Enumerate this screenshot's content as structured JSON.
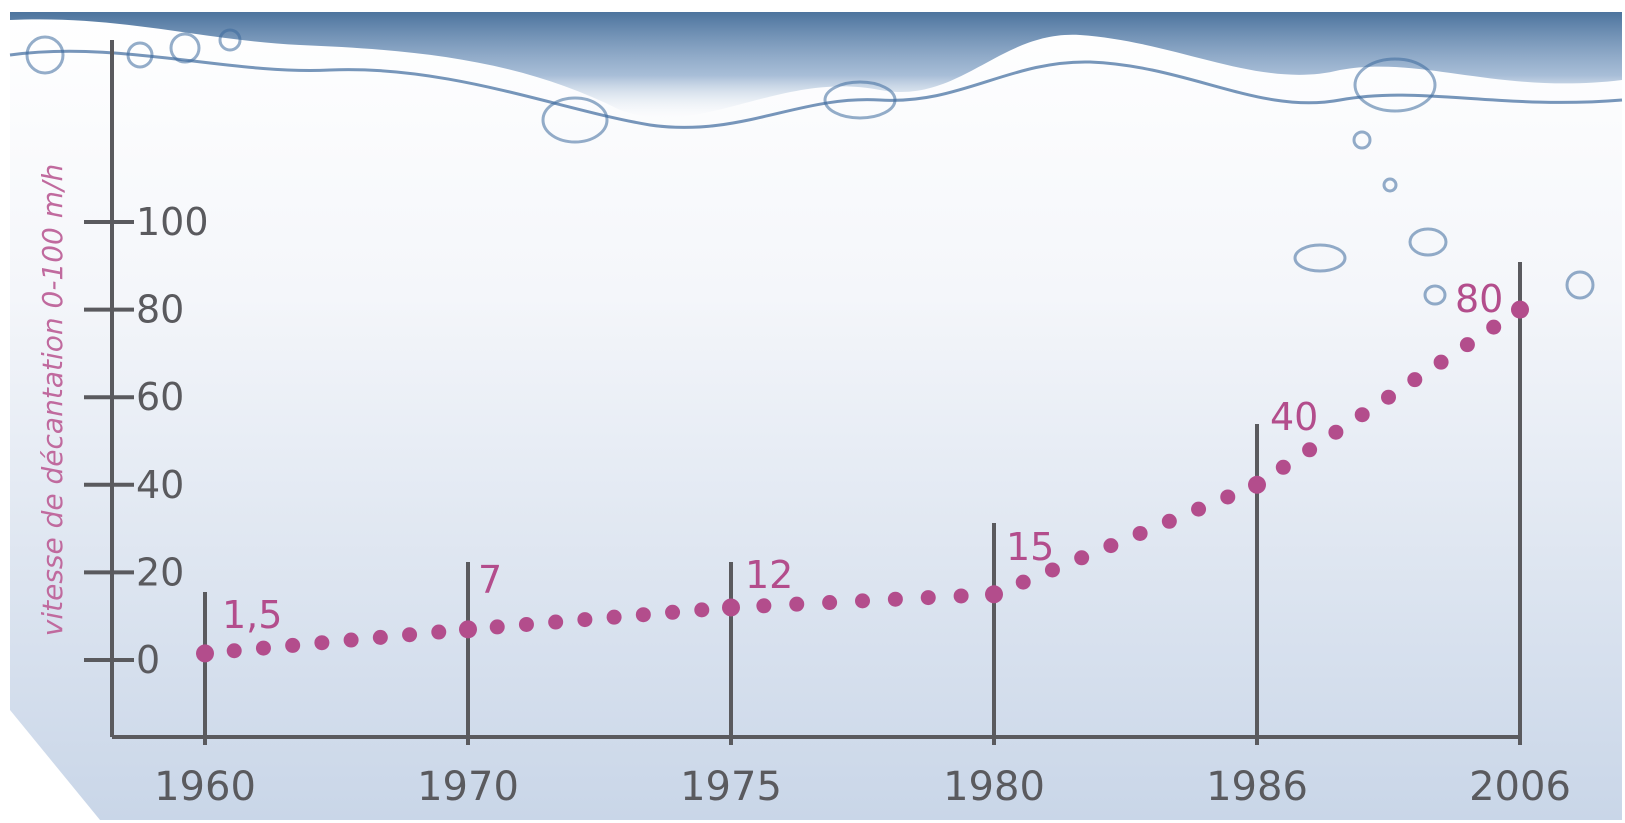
{
  "chart_data": {
    "type": "line",
    "ylabel": "vitesse de décantation 0-100 m/h",
    "xlabel": "",
    "ylim": [
      0,
      100
    ],
    "y_ticks": [
      "0",
      "20",
      "40",
      "60",
      "80",
      "100"
    ],
    "y_tick_values": [
      0,
      20,
      40,
      60,
      80,
      100
    ],
    "categories": [
      "1960",
      "1970",
      "1975",
      "1980",
      "1986",
      "2006"
    ],
    "values": [
      1.5,
      7,
      12,
      15,
      40,
      80
    ],
    "value_labels": [
      "1,5",
      "7",
      "12",
      "15",
      "40",
      "80"
    ],
    "grid": false,
    "legend": "none",
    "line_style": "dotted",
    "colors": {
      "series": "#b34d8c",
      "axis": "#5a5a5e",
      "ylabel": "#c06a9e",
      "water": "#2d5b8c"
    }
  }
}
